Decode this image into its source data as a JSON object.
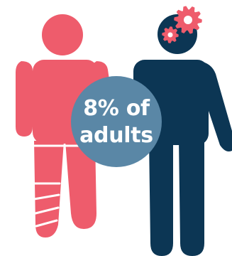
{
  "colors": {
    "background": "#ffffff",
    "left_figure": "#ee5c6c",
    "left_figure_stripes": "#ffffff",
    "right_figure": "#0c3654",
    "gears": "#ee5c6c",
    "stat_circle": "#5a87a6",
    "stat_text": "#ffffff"
  },
  "icons": {
    "left_figure": "person-with-prosthetic-leg-icon",
    "right_figure": "person-icon",
    "gears": "gears-icon"
  },
  "stat": {
    "line1": "8% of",
    "line2": "adults"
  }
}
